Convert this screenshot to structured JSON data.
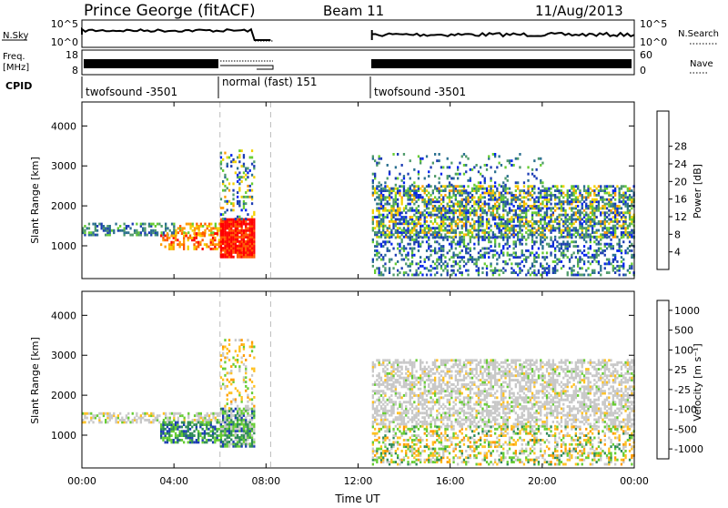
{
  "header": {
    "station": "Prince George (fitACF)",
    "beam": "Beam 11",
    "date": "11/Aug/2013"
  },
  "summary": {
    "nsky_label": "N.Sky",
    "nsky_ticks": [
      "10^5",
      "10^0"
    ],
    "nsearch_label": "N.Search",
    "nsearch_ticks": [
      "10^5",
      "10^0"
    ],
    "freq_label": "Freq.",
    "freq_unit": "[MHz]",
    "freq_ticks": [
      "18",
      "8"
    ],
    "nave_label": "Nave",
    "nave_ticks": [
      "60",
      "0"
    ],
    "cpid_label": "CPID",
    "cpid_segments": [
      {
        "label": "twofsound -3501",
        "start": 0.0,
        "end": 6.0
      },
      {
        "label": "normal (fast) 151",
        "start": 6.0,
        "end": 12.6
      },
      {
        "label": "twofsound -3501",
        "start": 12.6,
        "end": 24.0
      }
    ]
  },
  "colors": {
    "power_scale": [
      "#0022ee",
      "#1c3cb4",
      "#2a6f8f",
      "#4e9a6a",
      "#66cc33",
      "#f2d000",
      "#ff9a00",
      "#ff5a00",
      "#ff0000"
    ],
    "velocity_scale": [
      "#ff0000",
      "#ff5a00",
      "#ff9a00",
      "#ffc020",
      "#c8c8c8",
      "#66cc33",
      "#2e8b57",
      "#1c3cb4",
      "#0022ee"
    ],
    "gap_line": "#bbbbbb"
  },
  "chart_data": [
    {
      "type": "heatmap",
      "title": "",
      "ylabel": "Slant Range [km]",
      "xlabel": "",
      "ylim": [
        180,
        4600
      ],
      "xlim": [
        0,
        24
      ],
      "yticks": [
        "1000",
        "2000",
        "3000",
        "4000"
      ],
      "colorbar_label": "Power [dB]",
      "colorbar_ticks": [
        "4",
        "8",
        "12",
        "16",
        "20",
        "24",
        "28"
      ],
      "grid": false,
      "legend": "right"
    },
    {
      "type": "heatmap",
      "title": "",
      "ylabel": "Slant Range [km]",
      "xlabel": "Time UT",
      "ylim": [
        180,
        4600
      ],
      "xlim": [
        0,
        24
      ],
      "yticks": [
        "1000",
        "2000",
        "3000",
        "4000"
      ],
      "xticks": [
        "00:00",
        "04:00",
        "08:00",
        "12:00",
        "16:00",
        "20:00",
        "00:00"
      ],
      "colorbar_label": "Velocity [m s⁻¹]",
      "colorbar_ticks": [
        "1000",
        "500",
        "100",
        "25",
        "-25",
        "-100",
        "-500",
        "-1000"
      ],
      "grid": false,
      "legend": "right"
    }
  ]
}
